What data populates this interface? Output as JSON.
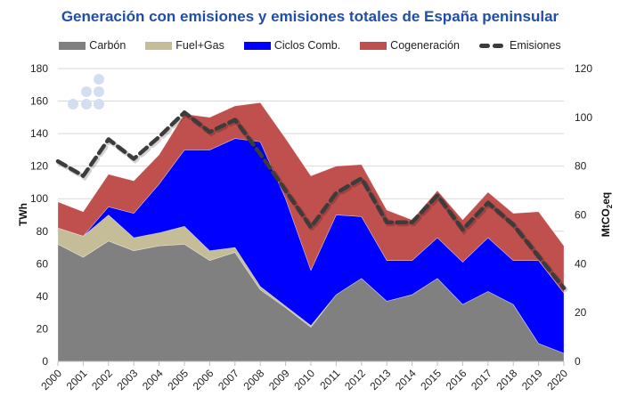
{
  "chart_data": {
    "type": "area",
    "title": "Generación con emisiones y emisiones totales de España peninsular",
    "xlabel": "",
    "ylabel": "TWh",
    "y2label": "MtCO2eq",
    "ylim": [
      0,
      180
    ],
    "y2lim": [
      0,
      120
    ],
    "yticks": [
      0,
      20,
      40,
      60,
      80,
      100,
      120,
      140,
      160,
      180
    ],
    "y2ticks": [
      0,
      20,
      40,
      60,
      80,
      100,
      120
    ],
    "grid": true,
    "legend_position": "top",
    "stacked": true,
    "x": [
      "2000",
      "2001",
      "2002",
      "2003",
      "2004",
      "2005",
      "2006",
      "2007",
      "2008",
      "2009",
      "2010",
      "2011",
      "2012",
      "2013",
      "2014",
      "2015",
      "2016",
      "2017",
      "2018",
      "2019",
      "2020"
    ],
    "series": [
      {
        "name": "Carbón",
        "color": "#808080",
        "axis": "left",
        "kind": "area",
        "values": [
          72,
          64,
          74,
          68,
          71,
          72,
          62,
          67,
          44,
          33,
          21,
          41,
          51,
          37,
          41,
          51,
          35,
          43,
          35,
          11,
          5
        ]
      },
      {
        "name": "Fuel+Gas",
        "color": "#c4bd97",
        "axis": "left",
        "kind": "area",
        "values": [
          10,
          13,
          16,
          8,
          8,
          11,
          6,
          3,
          2,
          1,
          1,
          0,
          0,
          0,
          0,
          0,
          0,
          0,
          0,
          0,
          0
        ]
      },
      {
        "name": "Ciclos Comb.",
        "color": "#0000ff",
        "axis": "left",
        "kind": "area",
        "values": [
          0,
          0,
          5,
          15,
          30,
          47,
          62,
          67,
          89,
          66,
          34,
          49,
          38,
          25,
          21,
          25,
          26,
          33,
          27,
          51,
          37
        ]
      },
      {
        "name": "Cogeneración",
        "color": "#c0504d",
        "axis": "left",
        "kind": "area",
        "values": [
          16,
          15,
          20,
          20,
          18,
          22,
          20,
          20,
          24,
          37,
          58,
          30,
          32,
          31,
          25,
          29,
          26,
          28,
          29,
          30,
          29
        ]
      },
      {
        "name": "Emisiones",
        "color": "#3c3c3c",
        "axis": "right",
        "kind": "dashed-line",
        "values": [
          82,
          76,
          91,
          83,
          92,
          102,
          94,
          99,
          85,
          70,
          55,
          69,
          75,
          57,
          57,
          68,
          54,
          65,
          56,
          43,
          30
        ]
      }
    ]
  }
}
